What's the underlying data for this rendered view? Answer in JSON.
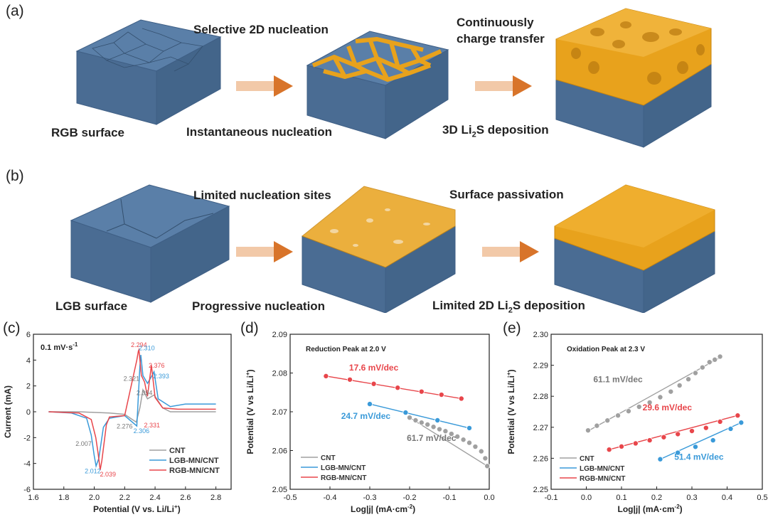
{
  "panels": {
    "a": {
      "label": "(a)",
      "rgb_surface": "RGB surface",
      "selective": "Selective 2D nucleation",
      "instantaneous": "Instantaneous nucleation",
      "continuous_1": "Continuously",
      "continuous_2": "charge transfer",
      "deposition_prefix": "3D Li",
      "deposition_sub": "2",
      "deposition_suffix": "S deposition"
    },
    "b": {
      "label": "(b)",
      "lgb_surface": "LGB surface",
      "limited_sites": "Limited nucleation sites",
      "progressive": "Progressive nucleation",
      "passivation": "Surface passivation",
      "deposition_prefix": "Limited 2D Li",
      "deposition_sub": "2",
      "deposition_suffix": "S deposition"
    },
    "c": {
      "label": "(c)"
    },
    "d": {
      "label": "(d)"
    },
    "e": {
      "label": "(e)"
    }
  },
  "colors": {
    "cnt": "#a0a0a0",
    "lgb": "#3a9ad9",
    "rgb": "#e8464b",
    "lgb_label": "#3a9ad9",
    "rgb_label": "#e8464b",
    "gray_label": "#777777",
    "block_top": "#5a7fa8",
    "block_side": "#4a6c93",
    "gold": "#e8a21c",
    "arrow": "#d8742a"
  },
  "chart_data": [
    {
      "type": "line",
      "panel": "c",
      "annotation": "0.1 mV·s-1",
      "annotation_main": "0.1 mV·s",
      "annotation_sup": "-1",
      "xlabel_main": "Potential (V vs. Li/Li",
      "xlabel_sup": "+",
      "xlabel_end": ")",
      "ylabel": "Current (mA)",
      "xlim": [
        1.6,
        2.9
      ],
      "ylim": [
        -6,
        6
      ],
      "xticks": [
        "1.6",
        "1.8",
        "2.0",
        "2.2",
        "2.4",
        "2.6",
        "2.8"
      ],
      "yticks": [
        "-6",
        "-4",
        "-2",
        "0",
        "2",
        "4",
        "6"
      ],
      "series": [
        {
          "name": "CNT",
          "color_key": "cnt",
          "x": [
            1.7,
            1.9,
            2.0,
            2.1,
            2.2,
            2.25,
            2.276,
            2.3,
            2.32,
            2.35,
            2.394,
            2.45,
            2.5,
            2.8
          ],
          "y": [
            0,
            0,
            -0.05,
            -0.1,
            -0.2,
            -0.6,
            -0.8,
            0.3,
            1.7,
            1.0,
            1.3,
            0.3,
            0,
            0
          ]
        },
        {
          "name": "LGB-MN/CNT",
          "color_key": "lgb",
          "x": [
            1.7,
            1.85,
            1.95,
            1.98,
            2.0,
            2.012,
            2.03,
            2.06,
            2.1,
            2.2,
            2.25,
            2.28,
            2.3,
            2.306,
            2.32,
            2.35,
            2.37,
            2.393,
            2.42,
            2.5,
            2.6,
            2.8
          ],
          "y": [
            0,
            -0.1,
            -0.5,
            -1.8,
            -3.4,
            -4.2,
            -3.6,
            -1.2,
            -0.5,
            -0.3,
            -0.8,
            -1.1,
            3.5,
            4.4,
            2.8,
            2.2,
            2.6,
            3.1,
            1.0,
            0.4,
            0.6,
            0.6
          ]
        },
        {
          "name": "RGB-MN/CNT",
          "color_key": "rgb",
          "x": [
            1.7,
            1.9,
            1.98,
            2.01,
            2.025,
            2.039,
            2.05,
            2.08,
            2.1,
            2.2,
            2.28,
            2.29,
            2.294,
            2.31,
            2.331,
            2.35,
            2.376,
            2.4,
            2.45,
            2.55,
            2.8
          ],
          "y": [
            0,
            -0.1,
            -0.6,
            -2.0,
            -3.2,
            -4.5,
            -3.8,
            -1.0,
            -0.4,
            -0.3,
            4.0,
            4.7,
            4.8,
            2.8,
            2.3,
            1.2,
            3.6,
            1.1,
            0.3,
            0.2,
            0.2
          ]
        }
      ],
      "peak_labels": [
        {
          "text": "2.294",
          "color_key": "rgb_label",
          "x": 2.294,
          "y": 5.0
        },
        {
          "text": "2.310",
          "color_key": "lgb_label",
          "x": 2.345,
          "y": 4.75
        },
        {
          "text": "2.376",
          "color_key": "rgb_label",
          "x": 2.41,
          "y": 3.4
        },
        {
          "text": "2.393",
          "color_key": "lgb_label",
          "x": 2.44,
          "y": 2.6
        },
        {
          "text": "2.321",
          "color_key": "gray_label",
          "x": 2.245,
          "y": 2.4
        },
        {
          "text": "2.394",
          "color_key": "gray_label",
          "x": 2.33,
          "y": 1.3
        },
        {
          "text": "2.276",
          "color_key": "gray_label",
          "x": 2.2,
          "y": -1.3
        },
        {
          "text": "2.306",
          "color_key": "lgb_label",
          "x": 2.31,
          "y": -1.65
        },
        {
          "text": "2.331",
          "color_key": "rgb_label",
          "x": 2.38,
          "y": -1.2
        },
        {
          "text": "2.007",
          "color_key": "gray_label",
          "x": 1.93,
          "y": -2.65
        },
        {
          "text": "2.012",
          "color_key": "lgb_label",
          "x": 1.99,
          "y": -4.75
        },
        {
          "text": "2.039",
          "color_key": "rgb_label",
          "x": 2.09,
          "y": -5.0
        }
      ],
      "legend": [
        "CNT",
        "LGB-MN/CNT",
        "RGB-MN/CNT"
      ]
    },
    {
      "type": "scatter",
      "panel": "d",
      "annotation": "Reduction Peak at 2.0 V",
      "xlabel_main": "Log|j| (mA·cm",
      "xlabel_sup": "-2",
      "xlabel_end": ")",
      "ylabel_main": "Potential (V vs Li/Li",
      "ylabel_sup": "+",
      "ylabel_end": ")",
      "xlim": [
        -0.5,
        0.0
      ],
      "ylim": [
        2.05,
        2.09
      ],
      "xticks": [
        "-0.5",
        "-0.4",
        "-0.3",
        "-0.2",
        "-0.1",
        "0.0"
      ],
      "yticks": [
        "2.05",
        "2.06",
        "2.07",
        "2.08",
        "2.09"
      ],
      "series": [
        {
          "name": "CNT",
          "color_key": "cnt",
          "x": [
            -0.2,
            -0.185,
            -0.17,
            -0.155,
            -0.14,
            -0.125,
            -0.11,
            -0.095,
            -0.08,
            -0.065,
            -0.05,
            -0.035,
            -0.02,
            -0.01,
            -0.005
          ],
          "y": [
            2.0685,
            2.0678,
            2.0672,
            2.0667,
            2.0661,
            2.0655,
            2.065,
            2.0643,
            2.0636,
            2.0628,
            2.062,
            2.061,
            2.0598,
            2.058,
            2.056
          ],
          "fit": [
            [
              -0.2,
              2.0685
            ],
            [
              -0.005,
              2.056
            ]
          ]
        },
        {
          "name": "LGB-MN/CNT",
          "color_key": "lgb",
          "x": [
            -0.3,
            -0.21,
            -0.13,
            -0.05
          ],
          "y": [
            2.072,
            2.0698,
            2.0678,
            2.0658
          ],
          "fit": [
            [
              -0.3,
              2.072
            ],
            [
              -0.05,
              2.0658
            ]
          ]
        },
        {
          "name": "RGB-MN/CNT",
          "color_key": "rgb",
          "x": [
            -0.41,
            -0.35,
            -0.29,
            -0.23,
            -0.17,
            -0.12,
            -0.07
          ],
          "y": [
            2.0792,
            2.0783,
            2.0772,
            2.0762,
            2.0752,
            2.0744,
            2.0734
          ],
          "fit": [
            [
              -0.41,
              2.0792
            ],
            [
              -0.07,
              2.0734
            ]
          ]
        }
      ],
      "slope_labels": [
        {
          "text": "17.6 mV/dec",
          "color_key": "rgb_label",
          "x": -0.29,
          "y": 2.0806
        },
        {
          "text": "24.7 mV/dec",
          "color_key": "lgb_label",
          "x": -0.31,
          "y": 2.0682
        },
        {
          "text": "61.7 mV/dec",
          "color_key": "gray_label",
          "x": -0.145,
          "y": 2.0625
        }
      ],
      "legend": [
        "CNT",
        "LGB-MN/CNT",
        "RGB-MN/CNT"
      ]
    },
    {
      "type": "scatter",
      "panel": "e",
      "annotation": "Oxidation Peak at 2.3 V",
      "xlabel_main": "Log|j| (mA·cm",
      "xlabel_sup": "-2",
      "xlabel_end": ")",
      "ylabel_main": "Potential (V vs Li/Li",
      "ylabel_sup": "+",
      "ylabel_end": ")",
      "xlim": [
        -0.1,
        0.5
      ],
      "ylim": [
        2.25,
        2.3
      ],
      "xticks": [
        "-0.1",
        "0.0",
        "0.1",
        "0.2",
        "0.3",
        "0.4",
        "0.5"
      ],
      "yticks": [
        "2.25",
        "2.26",
        "2.27",
        "2.28",
        "2.29",
        "2.30"
      ],
      "series": [
        {
          "name": "CNT",
          "color_key": "cnt",
          "x": [
            0.005,
            0.03,
            0.06,
            0.09,
            0.12,
            0.15,
            0.18,
            0.21,
            0.24,
            0.265,
            0.29,
            0.31,
            0.33,
            0.35,
            0.365,
            0.38
          ],
          "y": [
            2.269,
            2.2705,
            2.2722,
            2.2738,
            2.2752,
            2.2766,
            2.278,
            2.2797,
            2.2815,
            2.2835,
            2.2855,
            2.2875,
            2.2893,
            2.291,
            2.2918,
            2.2928
          ],
          "fit": [
            [
              0.005,
              2.2688
            ],
            [
              0.38,
              2.2925
            ]
          ]
        },
        {
          "name": "LGB-MN/CNT",
          "color_key": "lgb",
          "x": [
            0.21,
            0.26,
            0.31,
            0.36,
            0.41,
            0.44
          ],
          "y": [
            2.2597,
            2.2618,
            2.2637,
            2.2658,
            2.2695,
            2.2715
          ],
          "fit": [
            [
              0.21,
              2.2597
            ],
            [
              0.44,
              2.2715
            ]
          ]
        },
        {
          "name": "RGB-MN/CNT",
          "color_key": "rgb",
          "x": [
            0.065,
            0.1,
            0.14,
            0.18,
            0.22,
            0.26,
            0.3,
            0.34,
            0.38,
            0.43
          ],
          "y": [
            2.2628,
            2.2638,
            2.2648,
            2.2658,
            2.2668,
            2.2678,
            2.2688,
            2.2698,
            2.2718,
            2.2738
          ],
          "fit": [
            [
              0.065,
              2.2628
            ],
            [
              0.43,
              2.2738
            ]
          ]
        }
      ],
      "slope_labels": [
        {
          "text": "61.1 mV/dec",
          "color_key": "gray_label",
          "x": 0.09,
          "y": 2.2845
        },
        {
          "text": "29.6 mV/dec",
          "color_key": "rgb_label",
          "x": 0.23,
          "y": 2.2755
        },
        {
          "text": "51.4 mV/dec",
          "color_key": "lgb_label",
          "x": 0.32,
          "y": 2.2595
        }
      ],
      "legend": [
        "CNT",
        "LGB-MN/CNT",
        "RGB-MN/CNT"
      ]
    }
  ]
}
